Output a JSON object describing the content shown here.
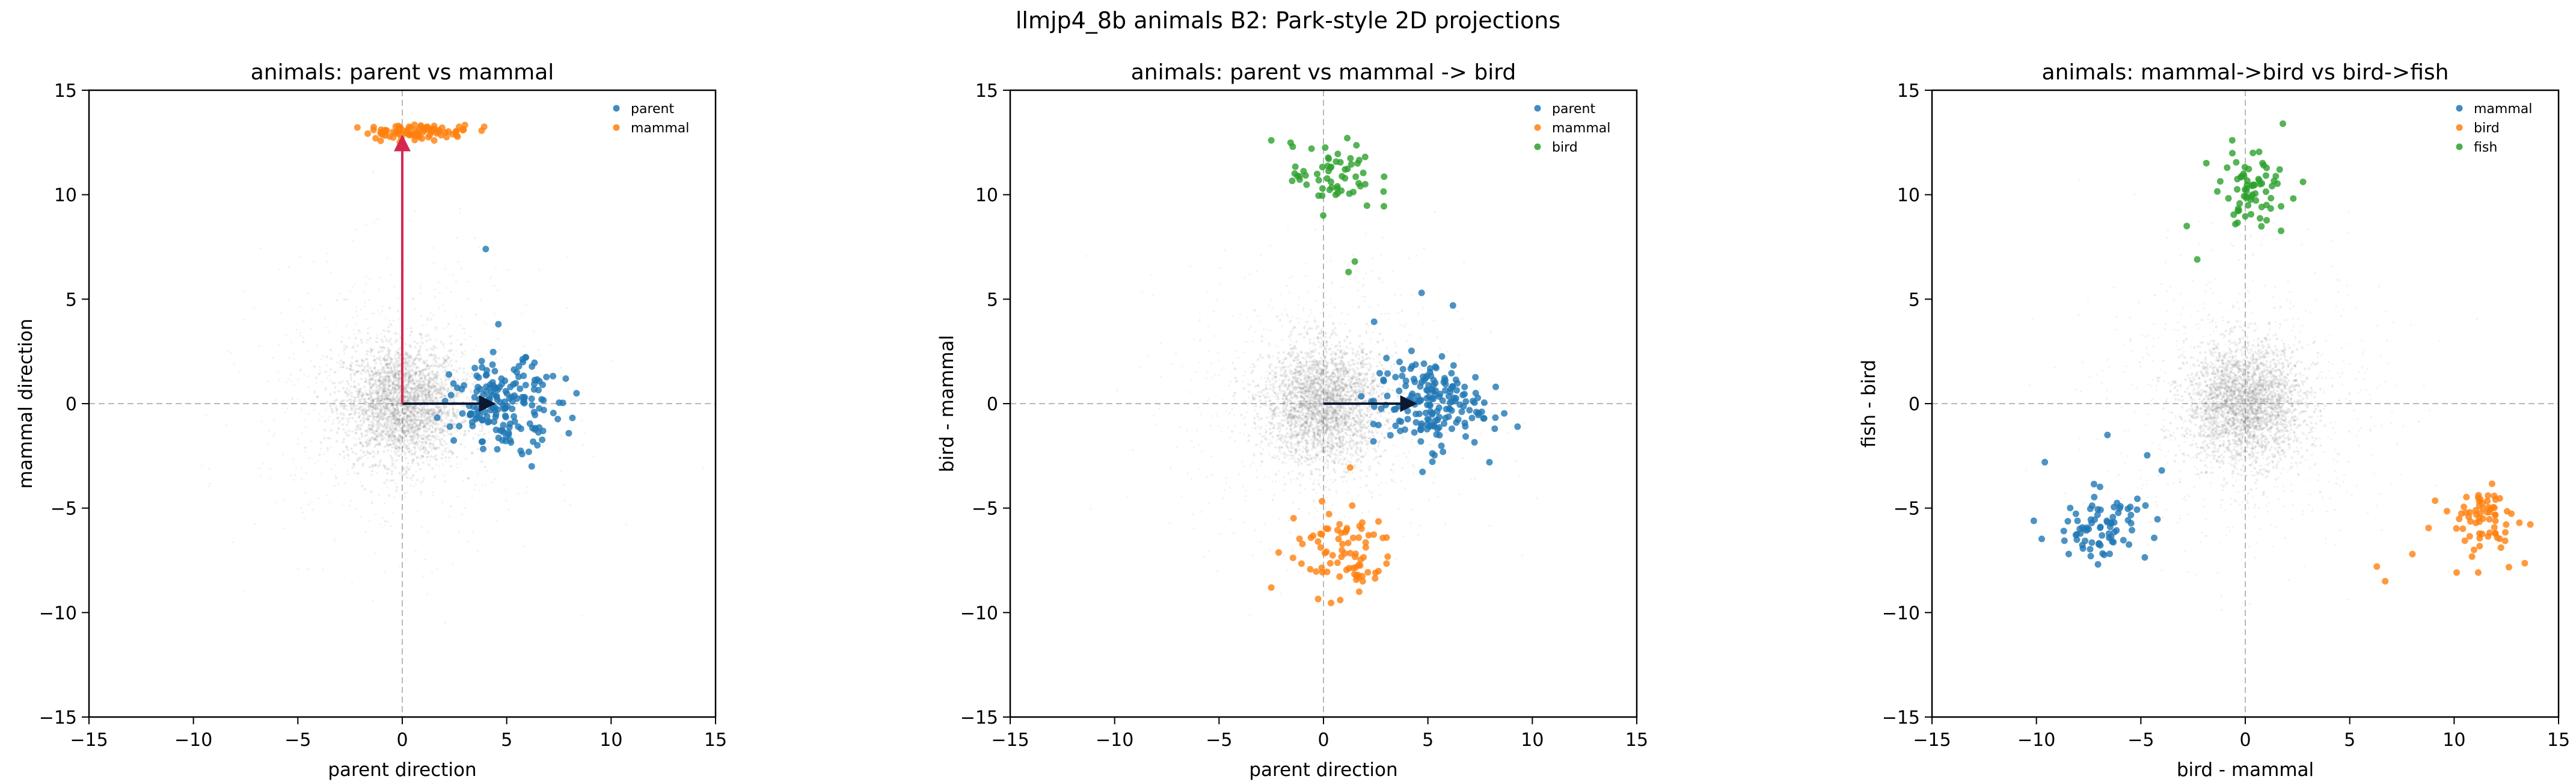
{
  "suptitle": "llmjp4_8b animals B2: Park-style 2D projections",
  "colors": {
    "blue": "#1f77b4",
    "orange": "#ff7f0e",
    "green": "#2ca02c",
    "gray": "#7f7f7f",
    "red_arrow": "#d62750",
    "black_arrow": "#0b1a33"
  },
  "chart_data": [
    {
      "type": "scatter",
      "title": "animals: parent vs mammal",
      "xlabel": "parent direction",
      "ylabel": "mammal direction",
      "xlim": [
        -15,
        15
      ],
      "ylim": [
        -15,
        15
      ],
      "xticks": [
        -15,
        -10,
        -5,
        0,
        5,
        10,
        15
      ],
      "yticks": [
        -15,
        -10,
        -5,
        0,
        5,
        10,
        15
      ],
      "grid": false,
      "zero_lines": true,
      "legend_position": "top-right",
      "background_cloud": {
        "color": "#7f7f7f",
        "center": [
          0,
          0
        ],
        "spread": [
          1.4,
          1.4
        ]
      },
      "arrows": [
        {
          "from": [
            0,
            0
          ],
          "to": [
            4.4,
            0
          ],
          "color": "#0b1a33"
        },
        {
          "from": [
            0,
            0
          ],
          "to": [
            0,
            12.8
          ],
          "color": "#d62750"
        }
      ],
      "series": [
        {
          "name": "parent",
          "color": "#1f77b4",
          "center": [
            5.0,
            0.0
          ],
          "spread": [
            1.3,
            1.0
          ],
          "count": 180,
          "outliers": [
            [
              4.0,
              7.4
            ],
            [
              4.6,
              3.8
            ],
            [
              6.2,
              -3.0
            ]
          ]
        },
        {
          "name": "mammal",
          "color": "#ff7f0e",
          "center": [
            0.7,
            13.0
          ],
          "spread": [
            1.3,
            0.18
          ],
          "count": 90,
          "outliers": []
        }
      ]
    },
    {
      "type": "scatter",
      "title": "animals: parent vs mammal -> bird",
      "xlabel": "parent direction",
      "ylabel": "bird - mammal",
      "xlim": [
        -15,
        15
      ],
      "ylim": [
        -15,
        15
      ],
      "xticks": [
        -15,
        -10,
        -5,
        0,
        5,
        10,
        15
      ],
      "yticks": [
        -15,
        -10,
        -5,
        0,
        5,
        10,
        15
      ],
      "grid": false,
      "zero_lines": true,
      "legend_position": "top-right",
      "background_cloud": {
        "color": "#7f7f7f",
        "center": [
          0,
          0
        ],
        "spread": [
          1.4,
          1.4
        ]
      },
      "arrows": [
        {
          "from": [
            0,
            0
          ],
          "to": [
            4.4,
            0
          ],
          "color": "#0b1a33"
        }
      ],
      "series": [
        {
          "name": "parent",
          "color": "#1f77b4",
          "center": [
            5.0,
            0.0
          ],
          "spread": [
            1.3,
            1.1
          ],
          "count": 180,
          "outliers": [
            [
              4.7,
              5.3
            ],
            [
              6.2,
              4.7
            ],
            [
              8.2,
              -1.2
            ]
          ]
        },
        {
          "name": "mammal",
          "color": "#ff7f0e",
          "center": [
            0.8,
            -7.0
          ],
          "spread": [
            1.3,
            1.1
          ],
          "count": 80,
          "outliers": [
            [
              -2.5,
              -8.8
            ],
            [
              0.8,
              -9.4
            ]
          ]
        },
        {
          "name": "bird",
          "color": "#2ca02c",
          "center": [
            0.5,
            10.8
          ],
          "spread": [
            1.0,
            0.8
          ],
          "count": 60,
          "outliers": [
            [
              -2.5,
              12.6
            ],
            [
              1.5,
              6.8
            ],
            [
              1.2,
              6.3
            ]
          ]
        }
      ]
    },
    {
      "type": "scatter",
      "title": "animals: mammal->bird vs bird->fish",
      "xlabel": "bird - mammal",
      "ylabel": "fish - bird",
      "xlim": [
        -15,
        15
      ],
      "ylim": [
        -15,
        15
      ],
      "xticks": [
        -15,
        -10,
        -5,
        0,
        5,
        10,
        15
      ],
      "yticks": [
        -15,
        -10,
        -5,
        0,
        5,
        10,
        15
      ],
      "grid": false,
      "zero_lines": true,
      "legend_position": "top-right",
      "background_cloud": {
        "color": "#7f7f7f",
        "center": [
          0,
          0
        ],
        "spread": [
          1.4,
          1.4
        ]
      },
      "arrows": [],
      "series": [
        {
          "name": "mammal",
          "color": "#1f77b4",
          "center": [
            -6.8,
            -5.9
          ],
          "spread": [
            1.1,
            0.8
          ],
          "count": 80,
          "outliers": [
            [
              -9.6,
              -2.8
            ],
            [
              -6.6,
              -1.5
            ],
            [
              -4.0,
              -3.2
            ]
          ]
        },
        {
          "name": "bird",
          "color": "#ff7f0e",
          "center": [
            11.3,
            -5.6
          ],
          "spread": [
            0.9,
            0.9
          ],
          "count": 70,
          "outliers": [
            [
              6.3,
              -7.8
            ],
            [
              6.7,
              -8.5
            ],
            [
              8.0,
              -7.2
            ]
          ]
        },
        {
          "name": "fish",
          "color": "#2ca02c",
          "center": [
            0.3,
            10.3
          ],
          "spread": [
            0.9,
            0.9
          ],
          "count": 70,
          "outliers": [
            [
              -2.8,
              8.5
            ],
            [
              -2.3,
              6.9
            ],
            [
              1.8,
              13.4
            ]
          ]
        }
      ]
    }
  ]
}
